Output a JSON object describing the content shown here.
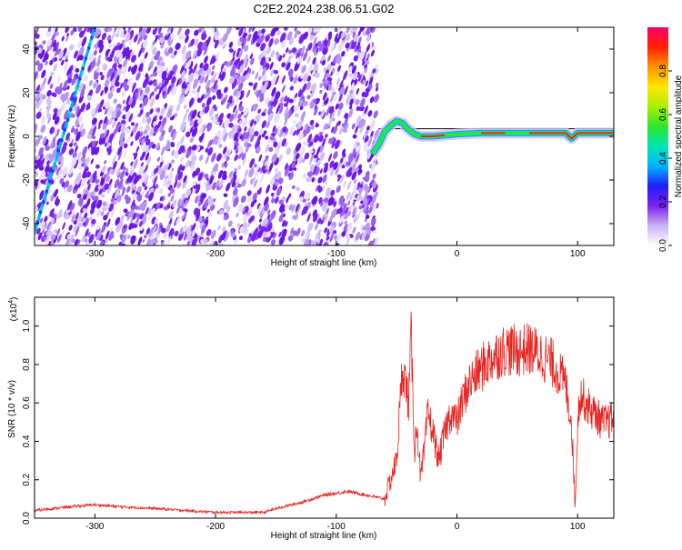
{
  "title": "C2E2.2024.238.06.51.G02",
  "chart_data": [
    {
      "type": "heatmap",
      "xlabel": "Height of straight line (km)",
      "ylabel": "Frequency (Hz)",
      "xlim": [
        -350,
        130
      ],
      "ylim": [
        -50,
        50
      ],
      "x_ticks": [
        -300,
        -200,
        -100,
        0,
        100
      ],
      "y_ticks": [
        -40,
        -20,
        0,
        20,
        40
      ],
      "colorbar": {
        "label": "Normalized spectral amplitude",
        "range": [
          0,
          1
        ],
        "ticks": [
          "0.0",
          "0.2",
          "0.4",
          "0.6",
          "0.8"
        ],
        "colors": [
          "#ffffff",
          "#c9b3f5",
          "#7a22f0",
          "#1e1eff",
          "#00b4ff",
          "#00e6b4",
          "#2ee62e",
          "#a8f000",
          "#ffe600",
          "#ff9600",
          "#ff2000",
          "#ff0068"
        ]
      },
      "noise_region_x": [
        -350,
        -66
      ],
      "diagonal_track": {
        "x": [
          -350,
          -300
        ],
        "y": [
          -44,
          50
        ]
      },
      "signal_track": {
        "x": [
          -70,
          -65,
          -60,
          -55,
          -50,
          -45,
          -40,
          -35,
          -30,
          -20,
          -10,
          0,
          20,
          40,
          60,
          80,
          90,
          95,
          100,
          110,
          120,
          130
        ],
        "y": [
          -8,
          -4,
          2,
          5,
          7,
          6,
          3,
          1,
          0,
          0,
          0.5,
          1,
          1.5,
          1.5,
          1.5,
          1.5,
          1.5,
          -1,
          1.5,
          1.5,
          1.5,
          1.5
        ]
      },
      "reference_line_y": 3.5
    },
    {
      "type": "line",
      "xlabel": "Height of straight line (km)",
      "ylabel": "SNR (10 * v/v)",
      "y_multiplier": "(x10",
      "y_multiplier_exp": "4",
      "xlim": [
        -350,
        130
      ],
      "ylim": [
        0,
        1.15
      ],
      "x_ticks": [
        -300,
        -200,
        -100,
        0,
        100
      ],
      "y_ticks": [
        "0.0",
        "0.2",
        "0.4",
        "0.6",
        "0.8",
        "1.0"
      ],
      "series": [
        {
          "color": "#e8221e",
          "x": [
            -350,
            -320,
            -300,
            -280,
            -250,
            -200,
            -160,
            -150,
            -130,
            -110,
            -90,
            -75,
            -60,
            -50,
            -45,
            -40,
            -38,
            -35,
            -33,
            -30,
            -27,
            -24,
            -20,
            -15,
            -10,
            -5,
            0,
            5,
            10,
            20,
            30,
            40,
            50,
            60,
            70,
            80,
            85,
            90,
            95,
            98,
            100,
            102,
            105,
            110,
            115,
            120,
            125,
            130
          ],
          "y": [
            0.04,
            0.06,
            0.07,
            0.06,
            0.05,
            0.03,
            0.03,
            0.05,
            0.08,
            0.12,
            0.14,
            0.12,
            0.1,
            0.3,
            0.8,
            0.6,
            0.95,
            0.35,
            0.5,
            0.2,
            0.35,
            0.55,
            0.45,
            0.3,
            0.45,
            0.55,
            0.5,
            0.62,
            0.7,
            0.78,
            0.84,
            0.88,
            0.87,
            0.88,
            0.85,
            0.8,
            0.75,
            0.7,
            0.5,
            0.05,
            0.5,
            0.65,
            0.62,
            0.57,
            0.54,
            0.5,
            0.5,
            0.52
          ]
        }
      ]
    }
  ]
}
